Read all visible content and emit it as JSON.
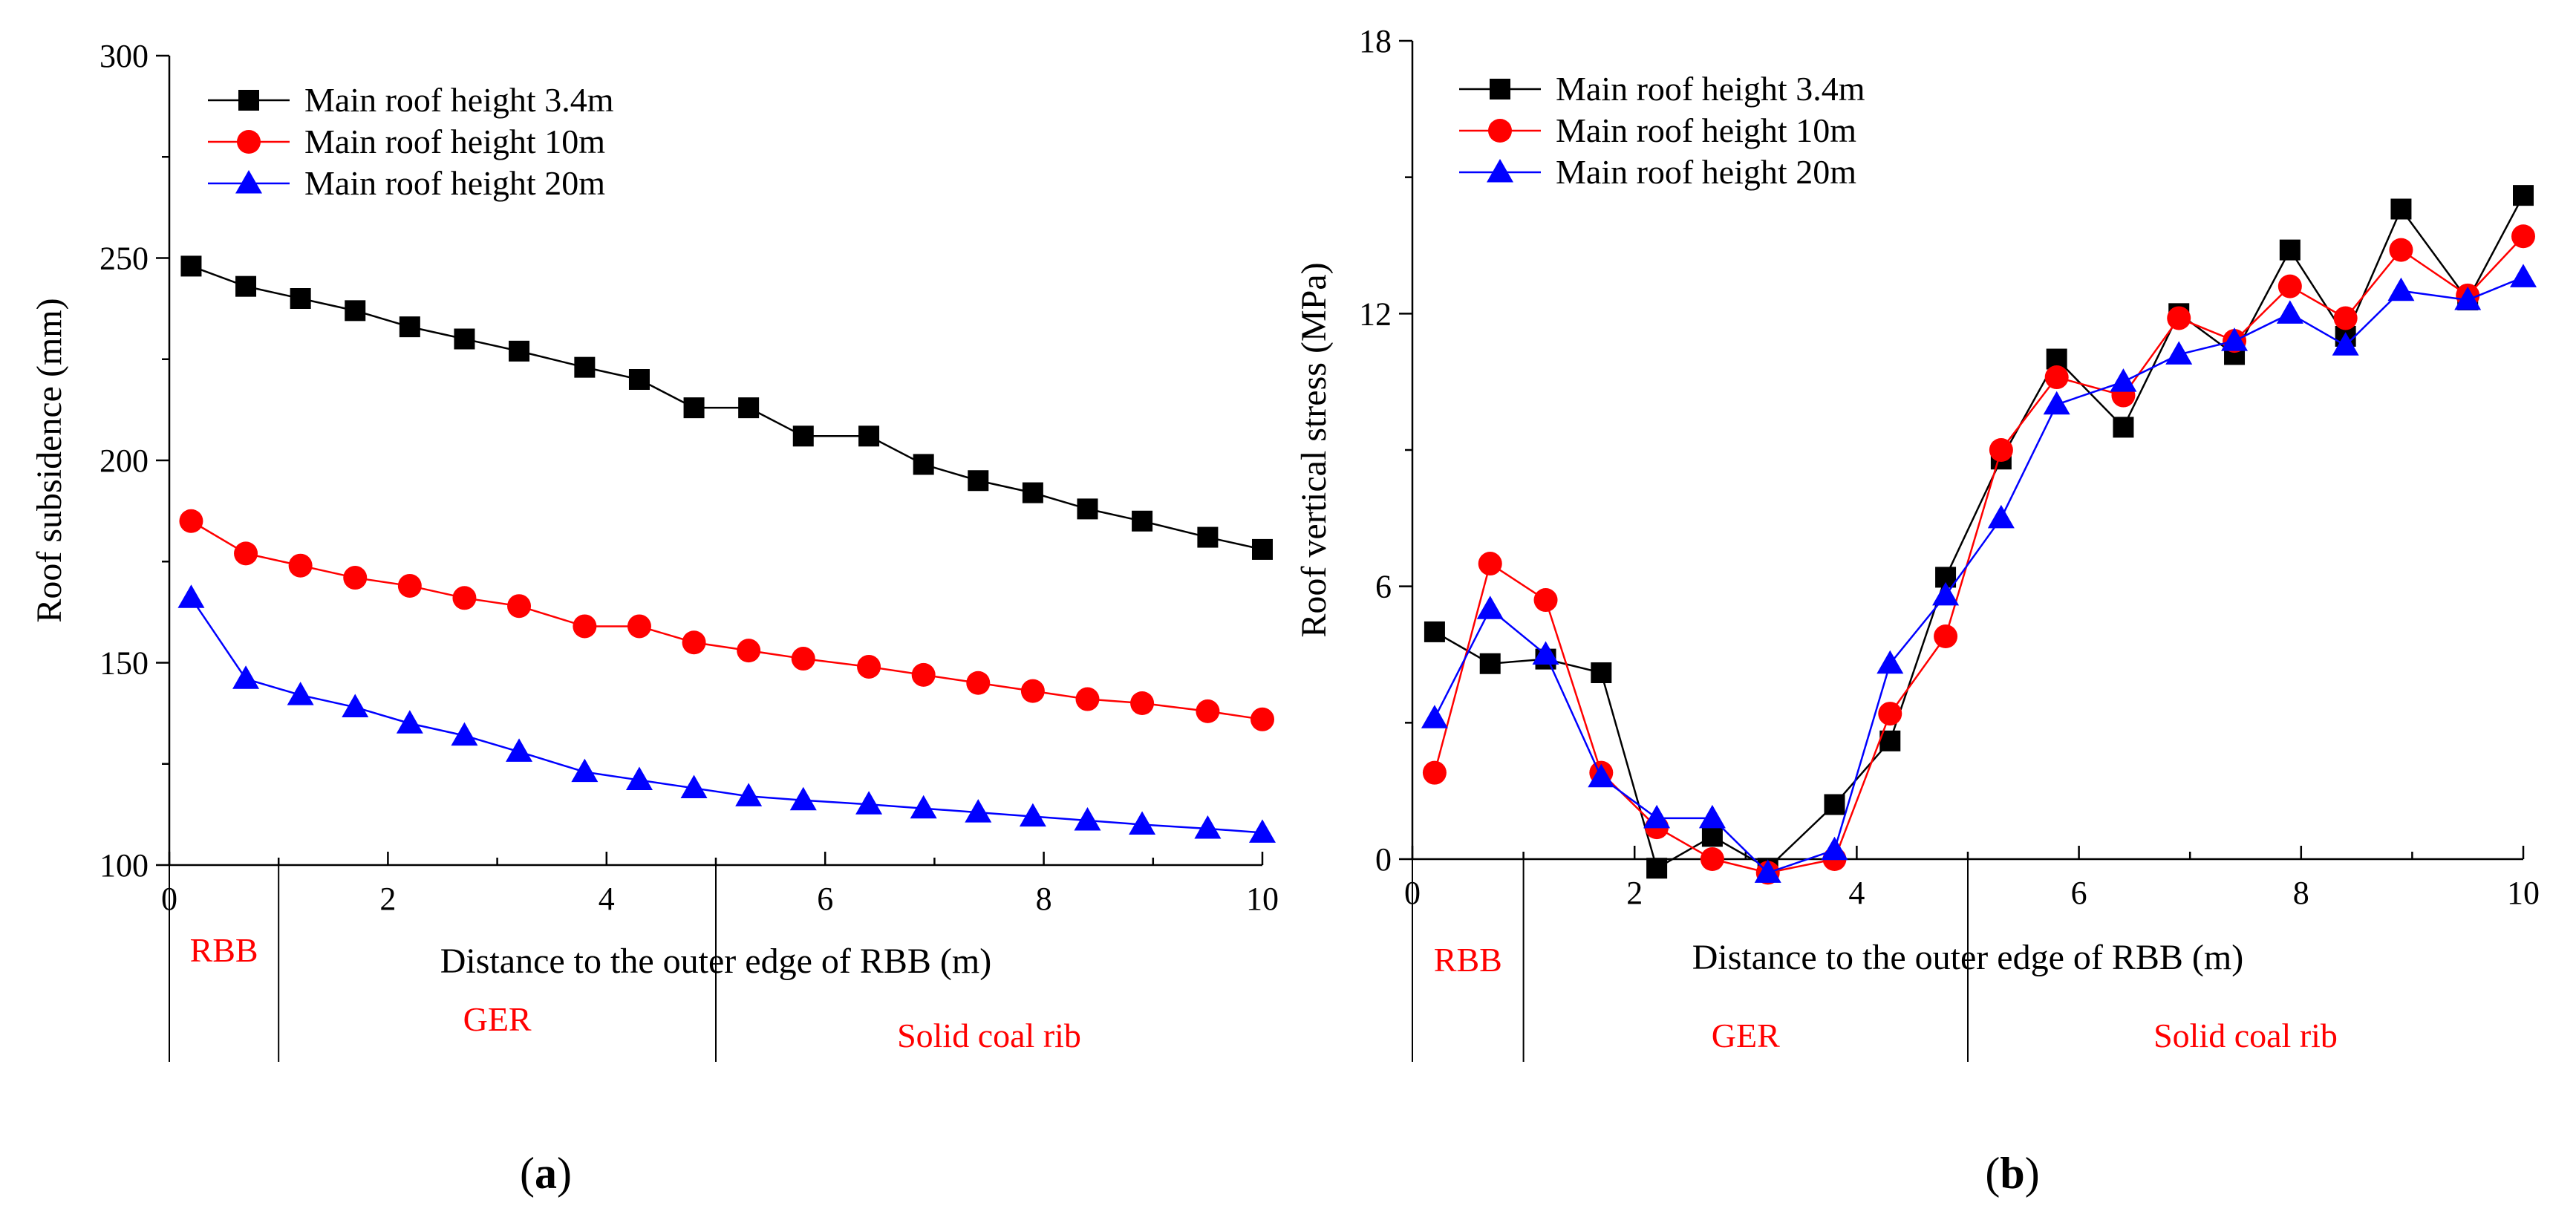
{
  "chart_data": [
    {
      "id": "a",
      "type": "line",
      "panel_label": "a",
      "xlabel": "Distance to the outer edge of RBB (m)",
      "ylabel": "Roof subsidence (mm)",
      "xlim": [
        0,
        10
      ],
      "ylim": [
        100,
        300
      ],
      "xticks": [
        0,
        2,
        4,
        6,
        8,
        10
      ],
      "yticks": [
        100,
        150,
        200,
        250,
        300
      ],
      "regions": [
        {
          "label": "RBB",
          "from": 0,
          "to": 1
        },
        {
          "label": "GER",
          "from": 1,
          "to": 5
        },
        {
          "label": "Solid coal rib",
          "from": 5,
          "to": 10
        }
      ],
      "x": [
        0.2,
        0.7,
        1.2,
        1.7,
        2.2,
        2.7,
        3.2,
        3.8,
        4.3,
        4.8,
        5.3,
        5.8,
        6.4,
        6.9,
        7.4,
        7.9,
        8.4,
        8.9,
        9.5,
        10.0
      ],
      "series": [
        {
          "name": "Main roof height 3.4m",
          "color": "#000000",
          "marker": "square",
          "values": [
            248,
            243,
            240,
            237,
            233,
            230,
            227,
            223,
            220,
            213,
            213,
            206,
            206,
            199,
            195,
            192,
            188,
            185,
            181,
            178
          ]
        },
        {
          "name": "Main roof height 10m",
          "color": "#ff0000",
          "marker": "circle",
          "values": [
            185,
            177,
            174,
            171,
            169,
            166,
            164,
            159,
            159,
            155,
            153,
            151,
            149,
            147,
            145,
            143,
            141,
            140,
            138,
            136
          ]
        },
        {
          "name": "Main roof height 20m",
          "color": "#0000ff",
          "marker": "triangle",
          "values": [
            166,
            146,
            142,
            139,
            135,
            132,
            128,
            123,
            121,
            119,
            117,
            116,
            115,
            114,
            113,
            112,
            111,
            110,
            109,
            108
          ]
        }
      ]
    },
    {
      "id": "b",
      "type": "line",
      "panel_label": "b",
      "xlabel": "Distance to the outer edge of RBB (m)",
      "ylabel": "Roof vertical stress (MPa)",
      "xlim": [
        0,
        10
      ],
      "ylim": [
        0,
        18
      ],
      "xticks": [
        0,
        2,
        4,
        6,
        8,
        10
      ],
      "yticks": [
        0,
        6,
        12,
        18
      ],
      "regions": [
        {
          "label": "RBB",
          "from": 0,
          "to": 1
        },
        {
          "label": "GER",
          "from": 1,
          "to": 5
        },
        {
          "label": "Solid coal rib",
          "from": 5,
          "to": 10
        }
      ],
      "x": [
        0.2,
        0.7,
        1.2,
        1.7,
        2.2,
        2.7,
        3.2,
        3.8,
        4.3,
        4.8,
        5.3,
        5.8,
        6.4,
        6.9,
        7.4,
        7.9,
        8.4,
        8.9,
        9.5,
        10.0
      ],
      "series": [
        {
          "name": "Main roof height 3.4m",
          "color": "#000000",
          "marker": "square",
          "values": [
            5.0,
            4.3,
            4.4,
            4.1,
            -0.2,
            0.5,
            -0.2,
            1.2,
            2.6,
            6.2,
            8.8,
            11.0,
            9.5,
            12.0,
            11.1,
            13.4,
            11.5,
            14.3,
            12.3,
            14.6
          ]
        },
        {
          "name": "Main roof height 10m",
          "color": "#ff0000",
          "marker": "circle",
          "values": [
            1.9,
            6.5,
            5.7,
            1.9,
            0.7,
            0.0,
            -0.3,
            0.0,
            3.2,
            4.9,
            9.0,
            10.6,
            10.2,
            11.9,
            11.4,
            12.6,
            11.9,
            13.4,
            12.4,
            13.7
          ]
        },
        {
          "name": "Main roof height 20m",
          "color": "#0000ff",
          "marker": "triangle",
          "values": [
            3.1,
            5.5,
            4.5,
            1.8,
            0.9,
            0.9,
            -0.3,
            0.2,
            4.3,
            5.8,
            7.5,
            10.0,
            10.5,
            11.1,
            11.4,
            12.0,
            11.3,
            12.5,
            12.3,
            12.8
          ]
        }
      ]
    }
  ]
}
